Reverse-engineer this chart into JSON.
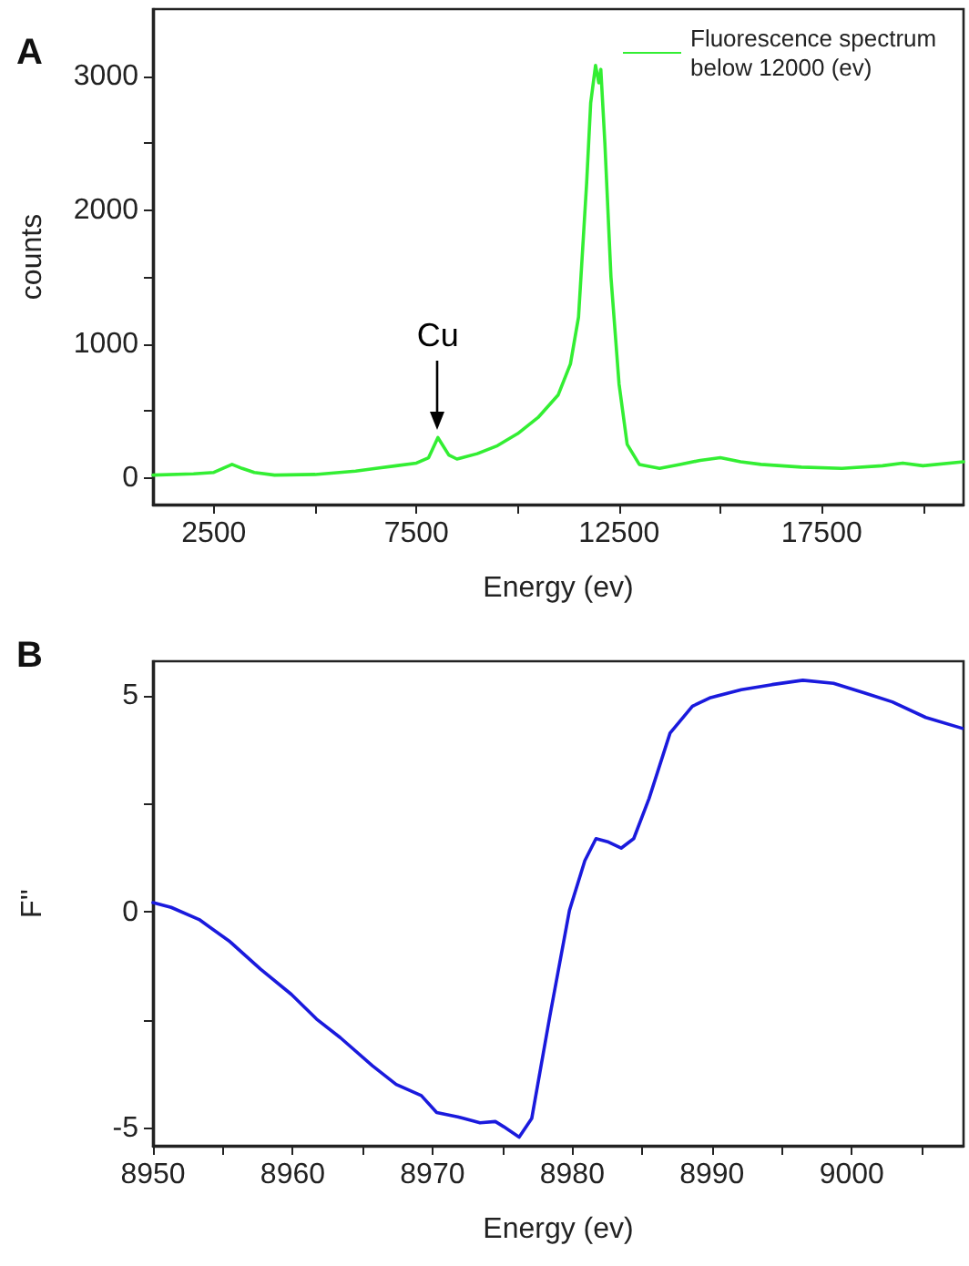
{
  "chart_data": [
    {
      "type": "line",
      "title": "A",
      "xlabel": "Energy (ev)",
      "ylabel": "counts",
      "xlim": [
        1000,
        21000
      ],
      "ylim": [
        -200,
        3500
      ],
      "xticks": [
        2500,
        {
          "value": 5000,
          "label": null
        },
        7500,
        {
          "value": 10000,
          "label": null
        },
        12500,
        {
          "value": 15000,
          "label": null
        },
        17500,
        {
          "value": 20000,
          "label": null
        }
      ],
      "yticks": [
        0,
        {
          "value": 500,
          "label": null
        },
        1000,
        {
          "value": 1500,
          "label": null
        },
        2000,
        {
          "value": 2500,
          "label": null
        },
        3000
      ],
      "grid": false,
      "legend": "top right",
      "marker": "none",
      "line_style": "solid",
      "annotations": [
        {
          "text": "Cu",
          "x": 8030,
          "y": 300
        }
      ],
      "x": [
        1000,
        2000,
        2500,
        2950,
        3200,
        3500,
        4000,
        5000,
        6000,
        6500,
        7000,
        7500,
        7800,
        8030,
        8300,
        8500,
        9000,
        9500,
        10000,
        10500,
        11000,
        11300,
        11500,
        11700,
        11800,
        11920,
        12000,
        12050,
        12150,
        12300,
        12500,
        12700,
        13000,
        13500,
        14000,
        14500,
        15000,
        15500,
        16000,
        17000,
        18000,
        19000,
        19500,
        20000,
        21000
      ],
      "series": [
        {
          "name": "Fluorescence spectrum below 12000 (ev)",
          "color": "#33ee33",
          "values": [
            20,
            30,
            40,
            100,
            70,
            40,
            20,
            25,
            50,
            70,
            90,
            110,
            150,
            300,
            170,
            140,
            180,
            240,
            330,
            450,
            620,
            850,
            1200,
            2200,
            2800,
            3080,
            2950,
            3050,
            2500,
            1500,
            700,
            250,
            100,
            70,
            100,
            130,
            150,
            120,
            100,
            80,
            70,
            90,
            110,
            90,
            120
          ]
        }
      ]
    },
    {
      "type": "line",
      "title": "B",
      "xlabel": "Energy (ev)",
      "ylabel": "F''",
      "xlim": [
        8950,
        9008
      ],
      "ylim": [
        -5.4,
        5.8
      ],
      "xticks": [
        8950,
        {
          "value": 8955,
          "label": null
        },
        8960,
        {
          "value": 8965,
          "label": null
        },
        8970,
        {
          "value": 8975,
          "label": null
        },
        8980,
        {
          "value": 8985,
          "label": null
        },
        8990,
        {
          "value": 8995,
          "label": null
        },
        9000,
        {
          "value": 9005,
          "label": null
        }
      ],
      "yticks": [
        -5,
        {
          "value": -2.5,
          "label": null
        },
        0,
        {
          "value": 2.5,
          "label": null
        },
        5
      ],
      "grid": false,
      "legend": false,
      "marker": "none",
      "line_style": "solid",
      "x": [
        8950,
        8951.3,
        8953.3,
        8955.5,
        8957.7,
        8959.9,
        8961.7,
        8963.4,
        8965.7,
        8967.4,
        8969.2,
        8970.3,
        8971.8,
        8973.4,
        8974.5,
        8975.1,
        8976.2,
        8977.1,
        8978.4,
        8979.8,
        8980.9,
        8981.7,
        8982.6,
        8983.5,
        8984.4,
        8985.5,
        8987.0,
        8988.6,
        8989.9,
        8992.1,
        8994.3,
        8996.5,
        8998.7,
        9000.9,
        9002.9,
        9005.3,
        9007.9
      ],
      "series": [
        {
          "color": "#1a1add",
          "values": [
            0.22,
            0.11,
            -0.17,
            -0.68,
            -1.32,
            -1.9,
            -2.47,
            -2.9,
            -3.55,
            -3.98,
            -4.24,
            -4.63,
            -4.73,
            -4.87,
            -4.84,
            -4.96,
            -5.2,
            -4.77,
            -2.4,
            0.04,
            1.19,
            1.7,
            1.62,
            1.48,
            1.7,
            2.63,
            4.14,
            4.76,
            4.96,
            5.14,
            5.26,
            5.36,
            5.29,
            5.07,
            4.86,
            4.5,
            4.25
          ]
        }
      ]
    }
  ]
}
